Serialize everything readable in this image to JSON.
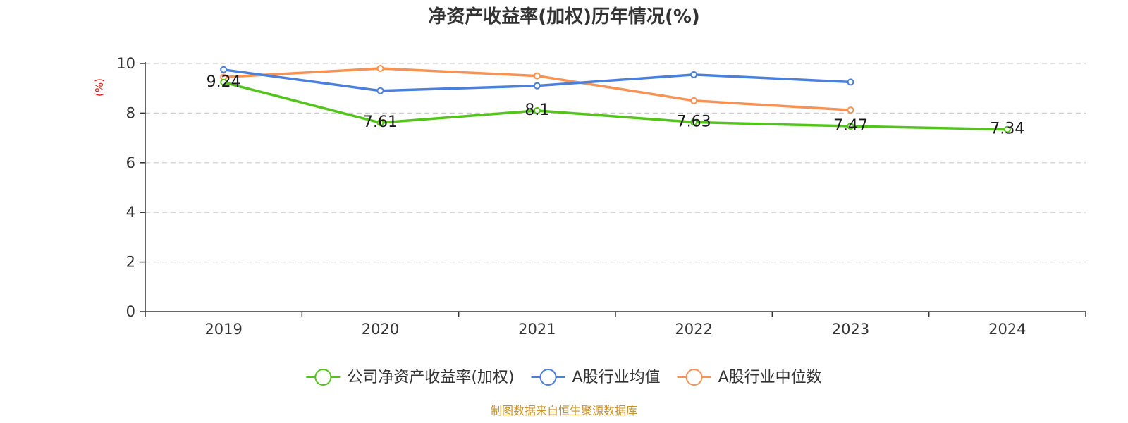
{
  "chart_data": {
    "type": "line",
    "title": "净资产收益率(加权)历年情况(%)",
    "ylabel": "(%)",
    "xlabel": "",
    "categories": [
      "2019",
      "2020",
      "2021",
      "2022",
      "2023",
      "2024"
    ],
    "ylim": [
      0,
      10
    ],
    "yticks": [
      0,
      2,
      4,
      6,
      8,
      10
    ],
    "grid": true,
    "legend_position": "bottom",
    "series": [
      {
        "name": "公司净资产收益率(加权)",
        "color": "#52c41a",
        "values": [
          9.24,
          7.61,
          8.1,
          7.63,
          7.47,
          7.34
        ],
        "show_labels": true
      },
      {
        "name": "A股行业均值",
        "color": "#4a7fdc",
        "values": [
          9.75,
          8.9,
          9.1,
          9.55,
          9.25,
          null
        ],
        "show_labels": false
      },
      {
        "name": "A股行业中位数",
        "color": "#f79255",
        "values": [
          9.45,
          9.8,
          9.5,
          8.5,
          8.12,
          null
        ],
        "show_labels": false
      }
    ]
  },
  "footer": {
    "source": "制图数据来自恒生聚源数据库"
  }
}
